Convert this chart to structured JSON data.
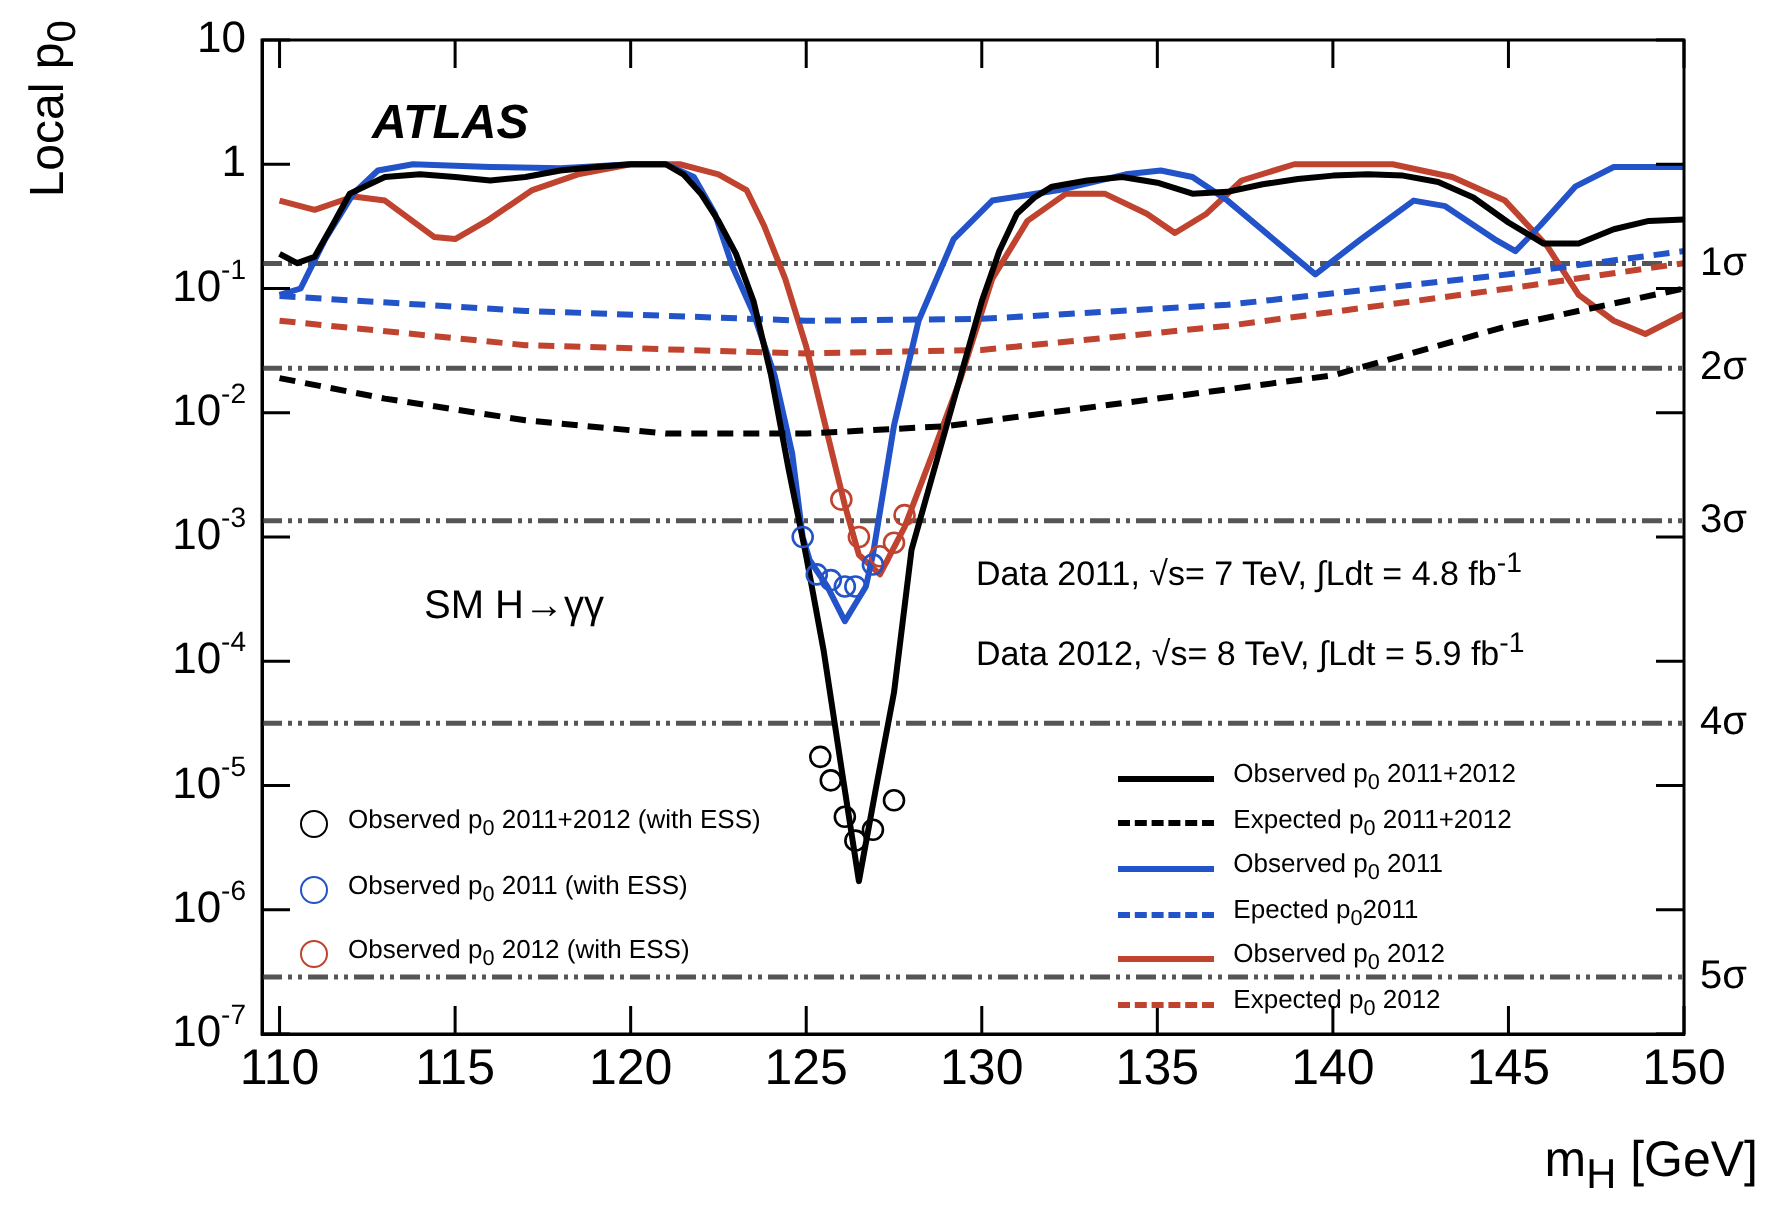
{
  "chart_data": {
    "type": "line",
    "xlabel": "m$_{H}$ [GeV]",
    "ylabel": "Local p$_{0}$",
    "log": "y",
    "xlim": [
      109.5,
      150
    ],
    "xticks": [
      110,
      115,
      120,
      125,
      130,
      135,
      140,
      145,
      150
    ],
    "ylim": [
      1e-07,
      10
    ],
    "yticks": [
      {
        "value": 10,
        "label": "10"
      },
      {
        "value": 1,
        "label": "1"
      },
      {
        "value": 0.1,
        "label": "10$^{-1}$"
      },
      {
        "value": 0.01,
        "label": "10$^{-2}$"
      },
      {
        "value": 0.001,
        "label": "10$^{-3}$"
      },
      {
        "value": 0.0001,
        "label": "10$^{-4}$"
      },
      {
        "value": 1e-05,
        "label": "10$^{-5}$"
      },
      {
        "value": 1e-06,
        "label": "10$^{-6}$"
      },
      {
        "value": 1e-07,
        "label": "10$^{-7}$"
      }
    ],
    "grid": false,
    "legend": "bottom right",
    "series": [
      {
        "name": "Observed p$_{0}$ 2011+2012",
        "color": "#000000",
        "line_style": "solid",
        "x": [
          110,
          110.5,
          111,
          111.5,
          112,
          113,
          114,
          115,
          116,
          117,
          118,
          119,
          120,
          121,
          121.5,
          122,
          122.5,
          123,
          123.5,
          124,
          124.5,
          125,
          125.5,
          126,
          126.5,
          127,
          127.5,
          128,
          128.5,
          129,
          129.5,
          130,
          130.5,
          131,
          131.5,
          132,
          133,
          134,
          135,
          136,
          137,
          138,
          139,
          140,
          141,
          142,
          143,
          144,
          145,
          146,
          147,
          148,
          149,
          150
        ],
        "values": [
          0.19,
          0.16,
          0.18,
          0.32,
          0.58,
          0.79,
          0.83,
          0.79,
          0.74,
          0.79,
          0.89,
          0.95,
          1,
          1,
          0.83,
          0.58,
          0.35,
          0.19,
          0.079,
          0.02,
          0.0035,
          0.0007,
          0.00012,
          1.4e-05,
          1.7e-06,
          1e-05,
          5.6e-05,
          0.00079,
          0.0025,
          0.0079,
          0.025,
          0.079,
          0.2,
          0.4,
          0.54,
          0.66,
          0.74,
          0.79,
          0.71,
          0.58,
          0.6,
          0.69,
          0.76,
          0.81,
          0.83,
          0.81,
          0.72,
          0.54,
          0.34,
          0.23,
          0.23,
          0.3,
          0.35,
          0.36
        ]
      },
      {
        "name": "Expected  p$_{0}$ 2011+2012",
        "color": "#000000",
        "line_style": "dashed",
        "x": [
          110,
          113,
          117,
          121,
          125,
          129,
          135,
          140,
          145,
          150
        ],
        "values": [
          0.019,
          0.013,
          0.0087,
          0.0068,
          0.0068,
          0.0078,
          0.013,
          0.02,
          0.05,
          0.1
        ]
      },
      {
        "name": "Observed p$_{0}$ 2011",
        "color": "#2353c8",
        "line_style": "solid",
        "x": [
          110,
          110.6,
          111.3,
          112.1,
          112.8,
          113.8,
          116,
          118,
          120,
          121,
          121.8,
          122.4,
          122.9,
          123.5,
          124.1,
          124.6,
          124.9,
          125.1,
          125.6,
          126.1,
          126.7,
          126.9,
          127.5,
          128.2,
          129.2,
          130.3,
          132.2,
          134.1,
          135.1,
          136,
          137,
          138.3,
          139.5,
          140.8,
          142.3,
          143.2,
          144.6,
          145.2,
          145.9,
          146.9,
          148,
          150
        ],
        "values": [
          0.089,
          0.1,
          0.25,
          0.58,
          0.89,
          1,
          0.95,
          0.93,
          1,
          1,
          0.79,
          0.4,
          0.15,
          0.063,
          0.02,
          0.0047,
          0.001,
          0.00065,
          0.0004,
          0.00021,
          0.0004,
          0.00072,
          0.0079,
          0.055,
          0.25,
          0.51,
          0.62,
          0.83,
          0.89,
          0.79,
          0.51,
          0.25,
          0.13,
          0.25,
          0.51,
          0.46,
          0.25,
          0.2,
          0.32,
          0.66,
          0.95,
          0.95
        ]
      },
      {
        "name": "Epected  p$_{0}$2011",
        "color": "#2353c8",
        "line_style": "dashed",
        "x": [
          110,
          117,
          125,
          130,
          137,
          145,
          150
        ],
        "values": [
          0.087,
          0.066,
          0.055,
          0.057,
          0.074,
          0.13,
          0.2
        ]
      },
      {
        "name": "Observed p$_{0}$ 2012",
        "color": "#c0432f",
        "line_style": "solid",
        "x": [
          110,
          111,
          112.1,
          113,
          114.4,
          115,
          115.9,
          117.2,
          118.5,
          120,
          121.4,
          122.5,
          123.3,
          123.8,
          124.4,
          125,
          125.6,
          126.1,
          126.5,
          127.1,
          127.8,
          128.6,
          129.4,
          130.3,
          131.3,
          132.4,
          133.5,
          134.7,
          135.5,
          136.4,
          137.4,
          138.9,
          141.7,
          143.4,
          144.9,
          146.1,
          147,
          148,
          148.9,
          150
        ],
        "values": [
          0.51,
          0.43,
          0.55,
          0.51,
          0.26,
          0.25,
          0.35,
          0.62,
          0.83,
          1,
          1,
          0.83,
          0.62,
          0.32,
          0.12,
          0.034,
          0.0068,
          0.0018,
          0.00072,
          0.0005,
          0.0012,
          0.0047,
          0.019,
          0.12,
          0.35,
          0.58,
          0.58,
          0.4,
          0.28,
          0.4,
          0.74,
          1,
          1,
          0.79,
          0.51,
          0.22,
          0.089,
          0.055,
          0.043,
          0.062
        ]
      },
      {
        "name": "Expected  p$_{0}$ 2012",
        "color": "#c0432f",
        "line_style": "dashed",
        "x": [
          110,
          117,
          125,
          130,
          137,
          145,
          150
        ],
        "values": [
          0.055,
          0.035,
          0.03,
          0.032,
          0.05,
          0.1,
          0.16
        ]
      },
      {
        "name": "Observed p$_{0}$ 2011+2012 (with ESS)",
        "type": "scatter",
        "marker": "circle",
        "color": "#000000",
        "x": [
          125.4,
          125.7,
          126.1,
          126.4,
          126.9,
          127.5
        ],
        "values": [
          1.7e-05,
          1.1e-05,
          5.6e-06,
          3.6e-06,
          4.4e-06,
          7.6e-06
        ]
      },
      {
        "name": "Observed p$_{0}$ 2011 (with ESS)",
        "type": "scatter",
        "marker": "circle",
        "color": "#2353c8",
        "x": [
          124.9,
          125.3,
          125.7,
          126.1,
          126.4,
          126.9
        ],
        "values": [
          0.001,
          0.0005,
          0.00045,
          0.0004,
          0.0004,
          0.0006
        ]
      },
      {
        "name": "Observed p$_{0}$ 2012 (with ESS)",
        "type": "scatter",
        "marker": "circle",
        "color": "#c0432f",
        "x": [
          126,
          126.5,
          127.1,
          127.5,
          127.8
        ],
        "values": [
          0.002,
          0.001,
          0.0007,
          0.0009,
          0.0015
        ]
      }
    ],
    "ref_lines": [
      {
        "axis": "y",
        "value": 0.159,
        "label": "1σ",
        "color": "#555555",
        "line_style": "dashed"
      },
      {
        "axis": "y",
        "value": 0.0228,
        "label": "2σ",
        "color": "#555555",
        "line_style": "dashed"
      },
      {
        "axis": "y",
        "value": 0.00135,
        "label": "3σ",
        "color": "#555555",
        "line_style": "dashed"
      },
      {
        "axis": "y",
        "value": 3.17e-05,
        "label": "4σ",
        "color": "#555555",
        "line_style": "dashed"
      },
      {
        "axis": "y",
        "value": 2.87e-07,
        "label": "5σ",
        "color": "#555555",
        "line_style": "dashed"
      }
    ],
    "annotations": [
      "ATLAS",
      "SM H→γγ",
      "Data 2011, √s= 7 TeV, ∫Ldt = 4.8 fb$^{-1}$",
      "Data 2012, √s= 8 TeV, ∫Ldt = 5.9 fb$^{-1}$"
    ]
  }
}
